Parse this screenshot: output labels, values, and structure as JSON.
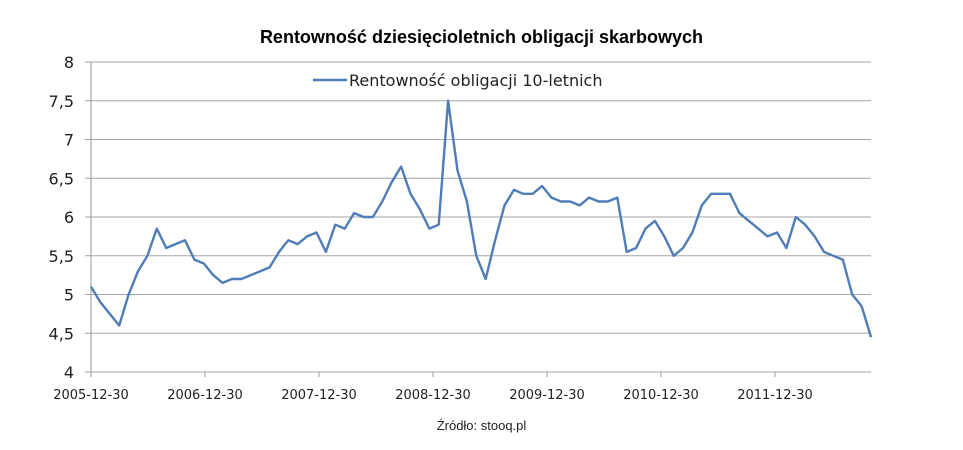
{
  "chart_data": {
    "type": "line",
    "title": "Rentowność dziesięcioletnich obligacji skarbowych",
    "xlabel": "",
    "ylabel": "",
    "ylim": [
      4,
      8
    ],
    "yticks": [
      "4",
      "4,5",
      "5",
      "5,5",
      "6",
      "6,5",
      "7",
      "7,5",
      "8"
    ],
    "ytick_values": [
      4,
      4.5,
      5,
      5.5,
      6,
      6.5,
      7,
      7.5,
      8
    ],
    "xticks": [
      "2005-12-30",
      "2006-12-30",
      "2007-12-30",
      "2008-12-30",
      "2009-12-30",
      "2010-12-30",
      "2011-12-30"
    ],
    "xlim": [
      "2005-12-30",
      "2012-11-30"
    ],
    "grid": "horizontal",
    "legend_position": "top-center",
    "line_color": "#4F7DB8",
    "source": "Źródło: stooq.pl",
    "series": [
      {
        "name": "Rentowność obligacji 10-letnich",
        "x": [
          "2005-12",
          "2006-01",
          "2006-02",
          "2006-03",
          "2006-04",
          "2006-05",
          "2006-06",
          "2006-07",
          "2006-08",
          "2006-09",
          "2006-10",
          "2006-11",
          "2006-12",
          "2007-01",
          "2007-02",
          "2007-03",
          "2007-04",
          "2007-05",
          "2007-06",
          "2007-07",
          "2007-08",
          "2007-09",
          "2007-10",
          "2007-11",
          "2007-12",
          "2008-01",
          "2008-02",
          "2008-03",
          "2008-04",
          "2008-05",
          "2008-06",
          "2008-07",
          "2008-08",
          "2008-09",
          "2008-10",
          "2008-11",
          "2008-12",
          "2009-01",
          "2009-02",
          "2009-03",
          "2009-04",
          "2009-05",
          "2009-06",
          "2009-07",
          "2009-08",
          "2009-09",
          "2009-10",
          "2009-11",
          "2009-12",
          "2010-01",
          "2010-02",
          "2010-03",
          "2010-04",
          "2010-05",
          "2010-06",
          "2010-07",
          "2010-08",
          "2010-09",
          "2010-10",
          "2010-11",
          "2010-12",
          "2011-01",
          "2011-02",
          "2011-03",
          "2011-04",
          "2011-05",
          "2011-06",
          "2011-07",
          "2011-08",
          "2011-09",
          "2011-10",
          "2011-11",
          "2011-12",
          "2012-01",
          "2012-02",
          "2012-03",
          "2012-04",
          "2012-05",
          "2012-06",
          "2012-07",
          "2012-08",
          "2012-09",
          "2012-10",
          "2012-11"
        ],
        "values": [
          5.1,
          4.9,
          4.75,
          4.6,
          5.0,
          5.3,
          5.5,
          5.85,
          5.6,
          5.65,
          5.7,
          5.45,
          5.4,
          5.25,
          5.15,
          5.2,
          5.2,
          5.25,
          5.3,
          5.35,
          5.55,
          5.7,
          5.65,
          5.75,
          5.8,
          5.55,
          5.9,
          5.85,
          6.05,
          6.0,
          6.0,
          6.2,
          6.45,
          6.65,
          6.3,
          6.1,
          5.85,
          5.9,
          7.5,
          6.6,
          6.2,
          5.5,
          5.2,
          5.7,
          6.15,
          6.35,
          6.3,
          6.3,
          6.4,
          6.25,
          6.2,
          6.2,
          6.15,
          6.25,
          6.2,
          6.2,
          6.25,
          5.55,
          5.6,
          5.85,
          5.95,
          5.75,
          5.5,
          5.6,
          5.8,
          6.15,
          6.3,
          6.3,
          6.3,
          6.05,
          5.95,
          5.85,
          5.75,
          5.8,
          5.6,
          6.0,
          5.9,
          5.75,
          5.55,
          5.5,
          5.45,
          5.0,
          4.85,
          4.45
        ]
      }
    ]
  }
}
